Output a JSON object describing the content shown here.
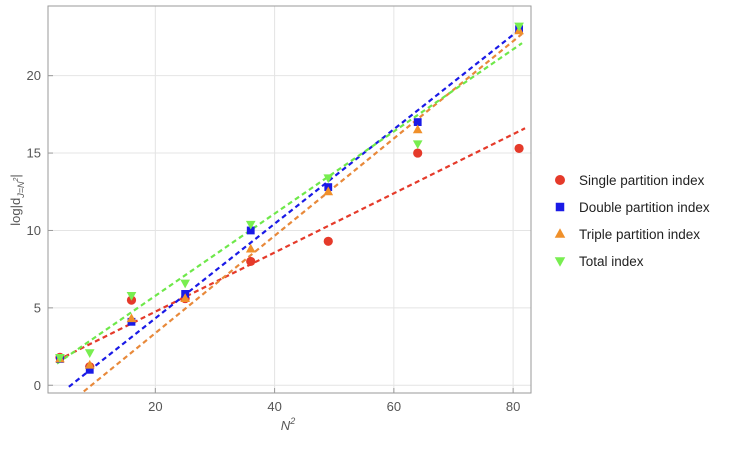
{
  "chart_data": {
    "type": "scatter",
    "xlabel_main": "N",
    "xlabel_sup": "2",
    "ylabel_main": "log|d",
    "ylabel_sub": "J=N",
    "ylabel_sub_sup": "2",
    "ylabel_end": "|",
    "xlim": [
      2,
      83
    ],
    "ylim": [
      -0.5,
      24.5
    ],
    "xticks": [
      20,
      40,
      60,
      80
    ],
    "yticks": [
      0,
      5,
      10,
      15,
      20
    ],
    "grid": true,
    "legend_position": "right",
    "x": [
      4,
      9,
      16,
      25,
      36,
      49,
      64,
      81
    ],
    "series": [
      {
        "name": "Single partition index",
        "marker": "circle",
        "color": "#e53a2a",
        "values": [
          1.8,
          1.2,
          5.5,
          5.6,
          8.0,
          9.3,
          15.0,
          15.3
        ],
        "fit": {
          "x0": 3.5,
          "y0": 1.6,
          "x1": 82.0,
          "y1": 16.6
        }
      },
      {
        "name": "Double partition index",
        "marker": "square",
        "color": "#1a1ae6",
        "values": [
          1.7,
          1.0,
          4.1,
          5.9,
          10.0,
          12.8,
          17.0,
          23.0
        ],
        "fit": {
          "x0": 5.5,
          "y0": -0.1,
          "x1": 81.5,
          "y1": 23.1
        }
      },
      {
        "name": "Triple partition index",
        "marker": "triangle-up",
        "color": "#f0902a",
        "values": [
          1.7,
          1.3,
          4.3,
          5.6,
          8.8,
          12.5,
          16.5,
          22.9
        ],
        "fit": {
          "x0": 8.0,
          "y0": -0.4,
          "x1": 81.5,
          "y1": 22.7
        }
      },
      {
        "name": "Total index",
        "marker": "triangle-down",
        "color": "#78ee50",
        "values": [
          1.8,
          2.1,
          5.8,
          6.6,
          10.4,
          13.4,
          15.6,
          23.2
        ],
        "fit": {
          "x0": 3.5,
          "y0": 1.4,
          "x1": 81.5,
          "y1": 22.1
        }
      }
    ]
  }
}
